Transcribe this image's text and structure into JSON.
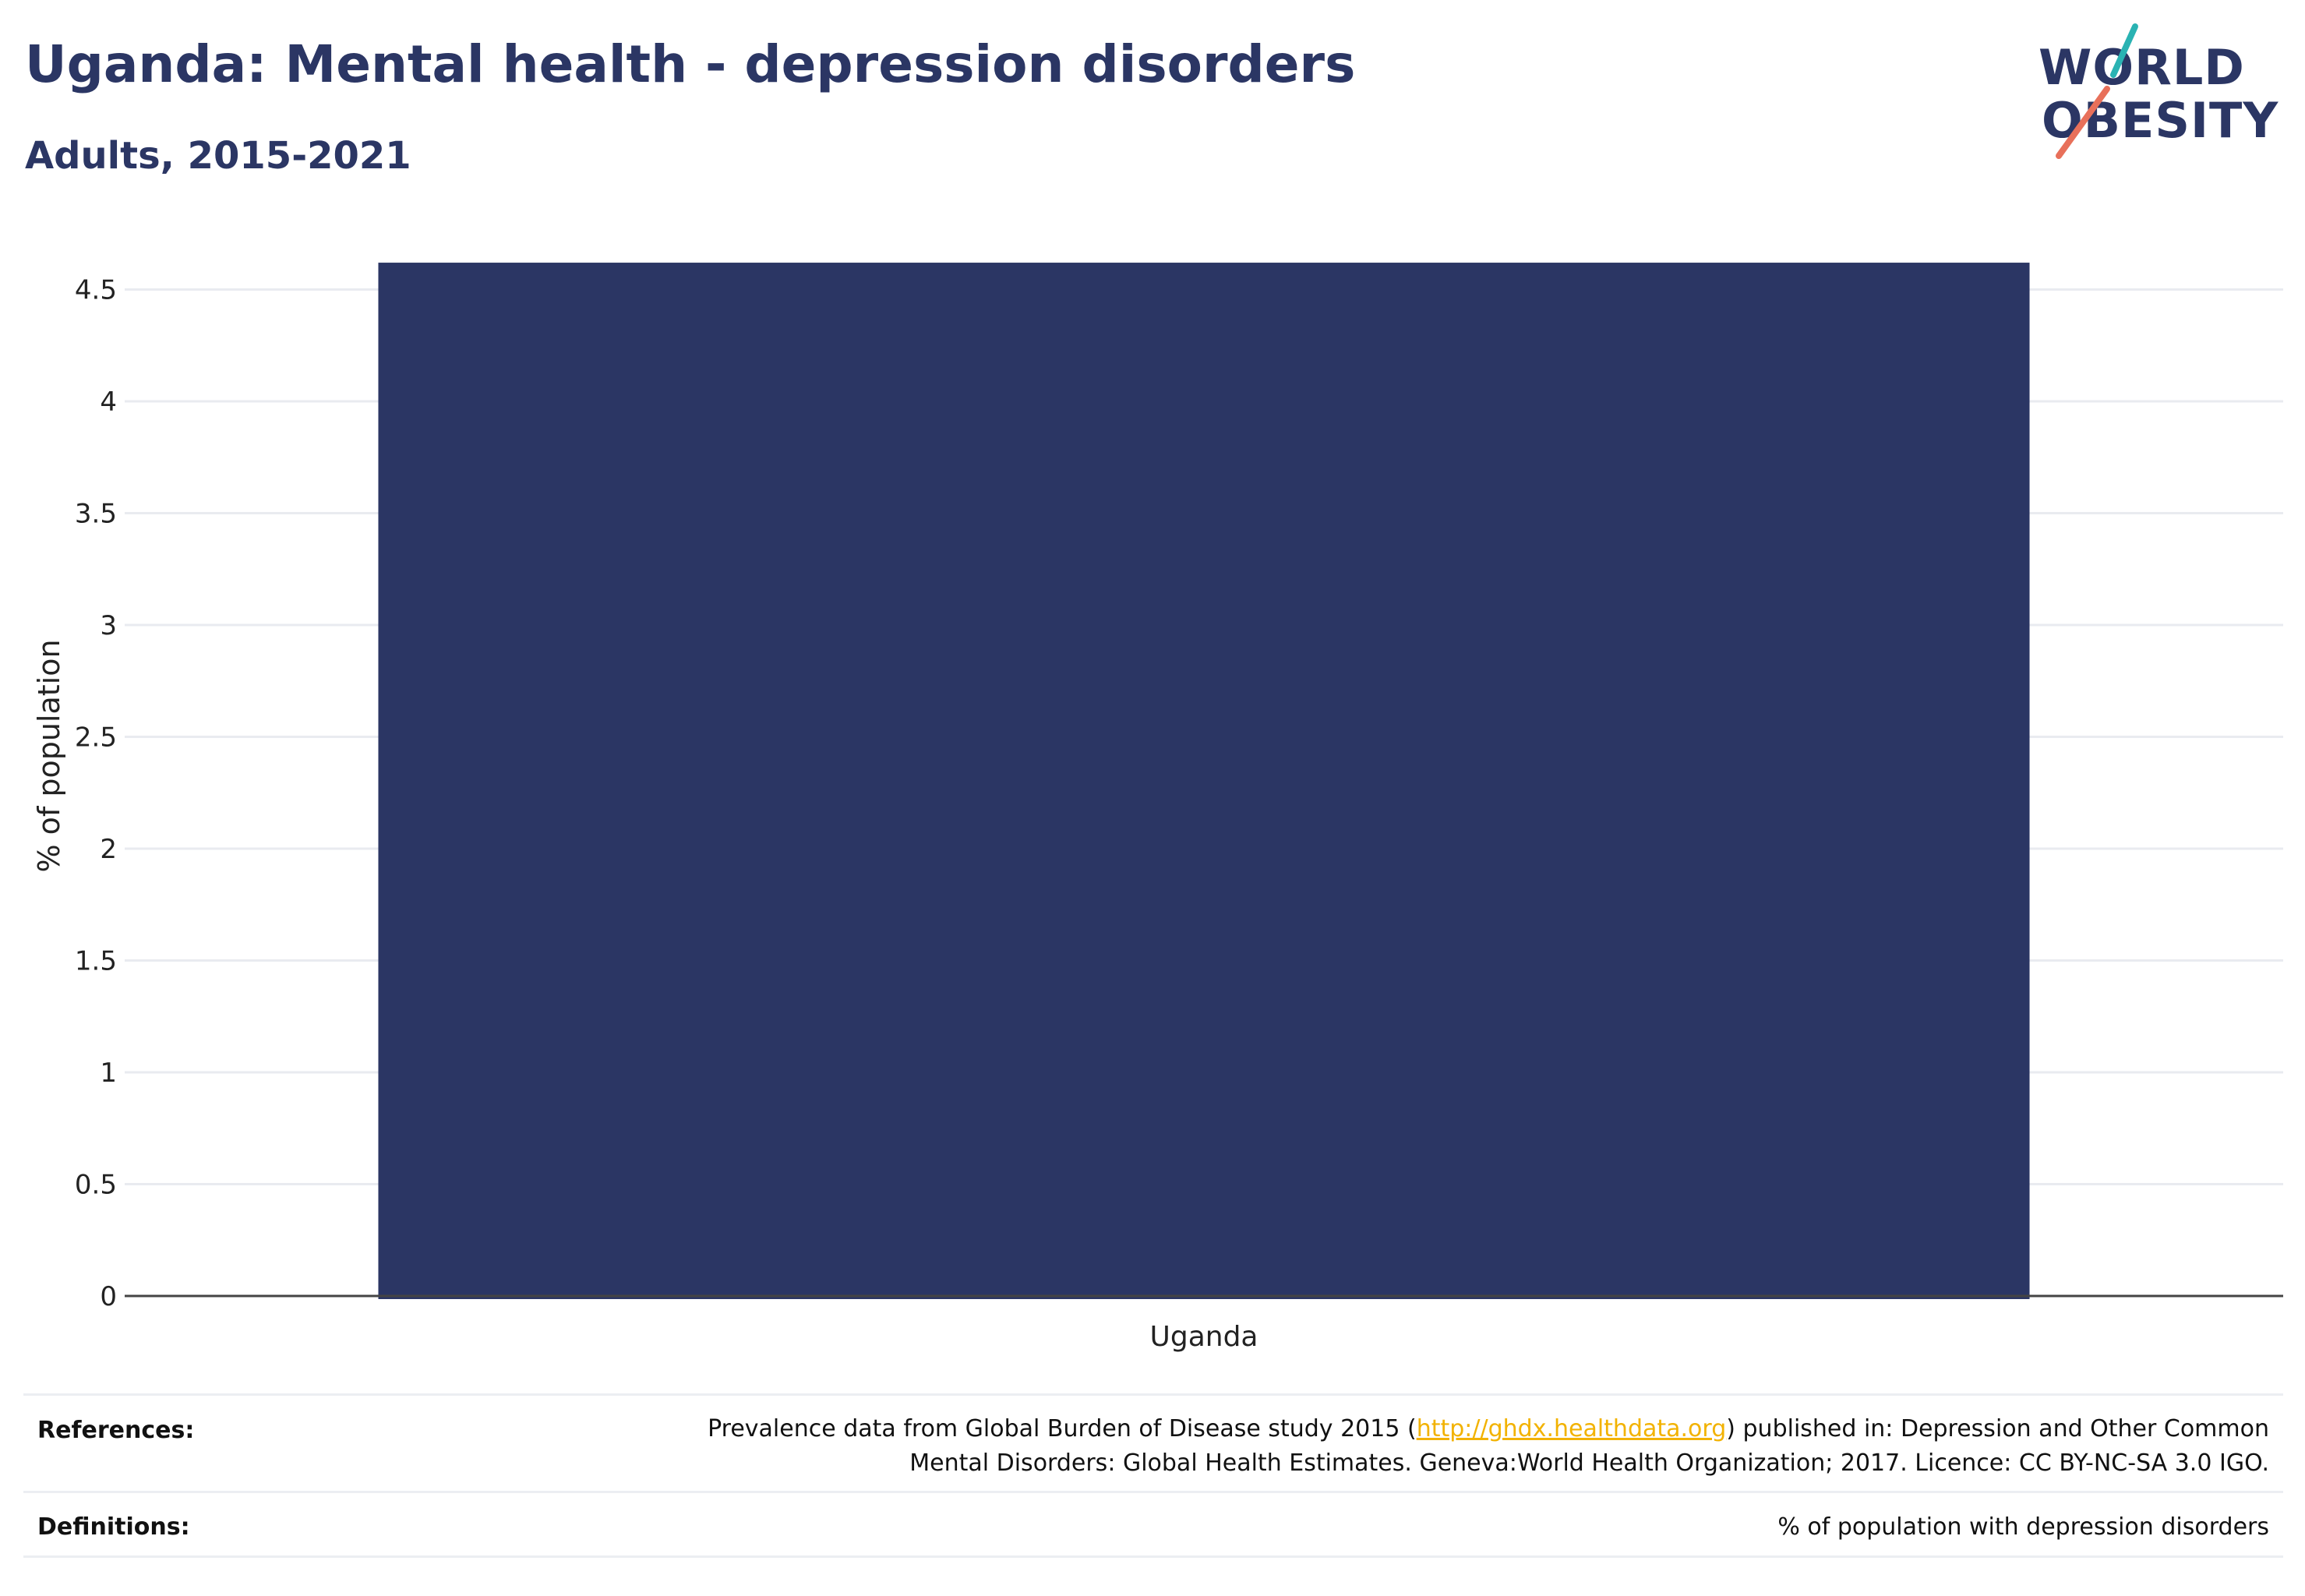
{
  "header": {
    "title": "Uganda: Mental health - depression disorders",
    "subtitle": "Adults, 2015-2021"
  },
  "logo": {
    "line1": "WORLD",
    "line2": "OBESITY",
    "text_color": "#2b3664",
    "slash_top_color": "#2ab3b3",
    "slash_bottom_color": "#e8705a"
  },
  "chart_data": {
    "type": "bar",
    "categories": [
      "Uganda"
    ],
    "values": [
      4.62
    ],
    "ylabel": "% of population",
    "xlabel": "",
    "ylim": [
      0,
      4.6
    ],
    "yticks": [
      "0",
      "0.5",
      "1",
      "1.5",
      "2",
      "2.5",
      "3",
      "3.5",
      "4",
      "4.5"
    ],
    "ytick_values": [
      0,
      0.5,
      1,
      1.5,
      2,
      2.5,
      3,
      3.5,
      4,
      4.5
    ],
    "grid": true,
    "bar_color": "#2b3664"
  },
  "footer": {
    "references_label": "References:",
    "references_line1_pre": "Prevalence data from Global Burden of Disease study 2015 (",
    "references_link": "http://ghdx.healthdata.org",
    "references_line1_post": ") published in: Depression and Other Common",
    "references_line2": "Mental Disorders: Global Health Estimates. Geneva:World Health Organization; 2017. Licence: CC BY-NC-SA 3.0 IGO.",
    "definitions_label": "Definitions:",
    "definitions_text": "% of population with depression disorders",
    "link_color": "#f2b200"
  }
}
